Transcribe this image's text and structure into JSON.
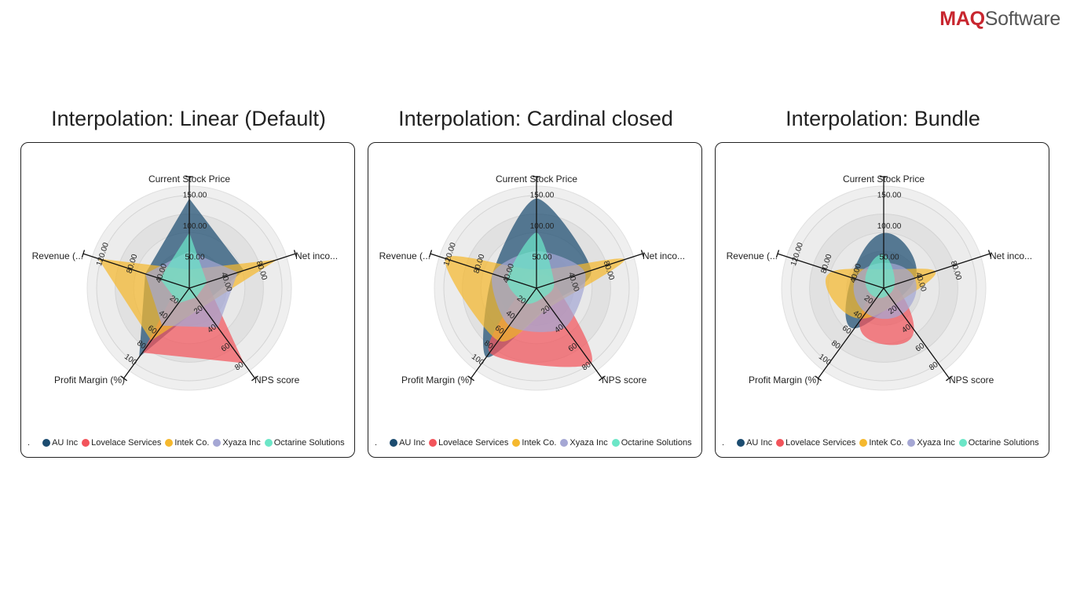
{
  "logo": {
    "brand": "MAQ",
    "rest": "Software"
  },
  "panels": [
    {
      "title": "Interpolation: Linear (Default)"
    },
    {
      "title": "Interpolation: Cardinal closed"
    },
    {
      "title": "Interpolation: Bundle"
    }
  ],
  "legend_marker": ".",
  "colors": [
    "#1c4c70",
    "#f2545b",
    "#f5b82e",
    "#a5a7d4",
    "#6ce6c7"
  ],
  "chart_data": [
    {
      "type": "radar",
      "title": "Interpolation: Linear (Default)",
      "interpolation": "linear",
      "axes": [
        "Current Stock Price",
        "Net inco...",
        "NPS score",
        "Profit Margin (%)",
        "Revenue (..."
      ],
      "axis_ticks": [
        [
          "50.00",
          "100.00",
          "150.00"
        ],
        [
          "40.00",
          "80.00"
        ],
        [
          "20",
          "40",
          "60",
          "80"
        ],
        [
          "20",
          "40",
          "60",
          "80",
          "100"
        ],
        [
          "40.00",
          "80.00",
          "120.00"
        ]
      ],
      "axis_max": [
        150,
        100,
        80,
        100,
        120
      ],
      "series": [
        {
          "name": "AU Inc",
          "values": [
            145,
            62,
            18,
            92,
            60
          ]
        },
        {
          "name": "Lovelace Services",
          "values": [
            20,
            20,
            80,
            86,
            15
          ]
        },
        {
          "name": "Intek Co.",
          "values": [
            30,
            100,
            20,
            70,
            124
          ]
        },
        {
          "name": "Xyaza Inc",
          "values": [
            60,
            55,
            42,
            50,
            60
          ]
        },
        {
          "name": "Octarine Solutions",
          "values": [
            90,
            20,
            10,
            20,
            40
          ]
        }
      ]
    },
    {
      "type": "radar",
      "title": "Interpolation: Cardinal closed",
      "interpolation": "cardinal-closed",
      "axes": [
        "Current Stock Price",
        "Net inco...",
        "NPS score",
        "Profit Margin (%)",
        "Revenue (..."
      ],
      "axis_ticks": [
        [
          "50.00",
          "100.00",
          "150.00"
        ],
        [
          "40.00",
          "80.00"
        ],
        [
          "20",
          "40",
          "60",
          "80"
        ],
        [
          "20",
          "40",
          "60",
          "80",
          "100"
        ],
        [
          "40.00",
          "80.00",
          "120.00"
        ]
      ],
      "axis_max": [
        150,
        100,
        80,
        100,
        120
      ],
      "series": [
        {
          "name": "AU Inc",
          "values": [
            145,
            62,
            18,
            92,
            60
          ]
        },
        {
          "name": "Lovelace Services",
          "values": [
            20,
            20,
            80,
            86,
            15
          ]
        },
        {
          "name": "Intek Co.",
          "values": [
            30,
            100,
            20,
            70,
            124
          ]
        },
        {
          "name": "Xyaza Inc",
          "values": [
            60,
            55,
            42,
            50,
            60
          ]
        },
        {
          "name": "Octarine Solutions",
          "values": [
            90,
            20,
            10,
            20,
            40
          ]
        }
      ]
    },
    {
      "type": "radar",
      "title": "Interpolation: Bundle",
      "interpolation": "bundle",
      "axes": [
        "Current Stock Price",
        "Net inco...",
        "NPS score",
        "Profit Margin (%)",
        "Revenue (..."
      ],
      "axis_ticks": [
        [
          "50.00",
          "100.00",
          "150.00"
        ],
        [
          "40.00",
          "80.00"
        ],
        [
          "20",
          "40",
          "60",
          "80"
        ],
        [
          "20",
          "40",
          "60",
          "80",
          "100"
        ],
        [
          "40.00",
          "80.00",
          "120.00"
        ]
      ],
      "axis_max": [
        150,
        100,
        80,
        100,
        120
      ],
      "series": [
        {
          "name": "AU Inc",
          "values": [
            145,
            62,
            18,
            92,
            60
          ]
        },
        {
          "name": "Lovelace Services",
          "values": [
            20,
            20,
            80,
            86,
            15
          ]
        },
        {
          "name": "Intek Co.",
          "values": [
            30,
            100,
            20,
            70,
            124
          ]
        },
        {
          "name": "Xyaza Inc",
          "values": [
            60,
            55,
            42,
            50,
            60
          ]
        },
        {
          "name": "Octarine Solutions",
          "values": [
            90,
            20,
            10,
            20,
            40
          ]
        }
      ]
    }
  ]
}
